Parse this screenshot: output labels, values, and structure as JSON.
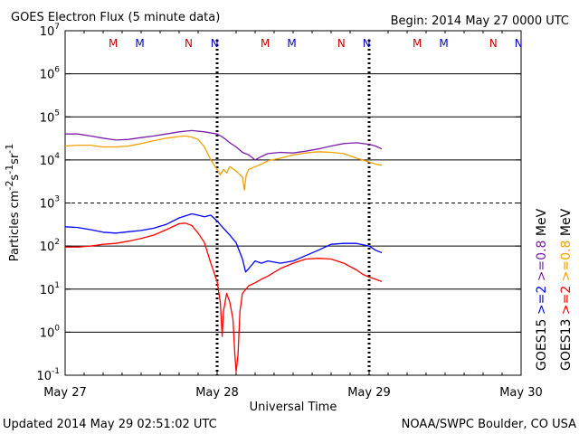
{
  "chart_data": {
    "type": "line",
    "title": "GOES Electron Flux (5 minute data)",
    "begin_label": "Begin: 2014 May 27 0000 UTC",
    "xlabel": "Universal Time",
    "ylabel_parts": [
      "Particles cm",
      "-2",
      "s",
      "-1",
      "sr",
      "-1"
    ],
    "y_scale": "log",
    "ylim": [
      0.1,
      10000000
    ],
    "y_ticks": [
      {
        "exp": "-1",
        "value": 0.1
      },
      {
        "exp": "0",
        "value": 1
      },
      {
        "exp": "1",
        "value": 10
      },
      {
        "exp": "2",
        "value": 100
      },
      {
        "exp": "3",
        "value": 1000
      },
      {
        "exp": "4",
        "value": 10000
      },
      {
        "exp": "5",
        "value": 100000
      },
      {
        "exp": "6",
        "value": 1000000
      },
      {
        "exp": "7",
        "value": 10000000
      }
    ],
    "xlim_hours": [
      0,
      72
    ],
    "x_ticks": [
      {
        "label": "May 27",
        "hour": 0
      },
      {
        "label": "May 28",
        "hour": 24
      },
      {
        "label": "May 29",
        "hour": 48
      },
      {
        "label": "May 30",
        "hour": 72
      }
    ],
    "threshold_dashed": 1000,
    "day_markers_hours": [
      24,
      48
    ],
    "markers": [
      {
        "label": "M",
        "hour": 7.6,
        "series": "GOES13"
      },
      {
        "label": "M",
        "hour": 11.8,
        "series": "GOES15"
      },
      {
        "label": "N",
        "hour": 19.5,
        "series": "GOES13"
      },
      {
        "label": "N",
        "hour": 23.6,
        "series": "GOES15"
      },
      {
        "label": "M",
        "hour": 31.6,
        "series": "GOES13"
      },
      {
        "label": "M",
        "hour": 35.8,
        "series": "GOES15"
      },
      {
        "label": "N",
        "hour": 43.6,
        "series": "GOES13"
      },
      {
        "label": "N",
        "hour": 47.6,
        "series": "GOES15"
      },
      {
        "label": "M",
        "hour": 55.6,
        "series": "GOES13"
      },
      {
        "label": "M",
        "hour": 59.8,
        "series": "GOES15"
      },
      {
        "label": "N",
        "hour": 67.6,
        "series": "GOES13"
      },
      {
        "label": "N",
        "hour": 71.6,
        "series": "GOES15"
      }
    ],
    "series": [
      {
        "name": "GOES15 >=0.8 MeV",
        "color": "#7a1fa8",
        "points": [
          [
            0,
            40000
          ],
          [
            2,
            40000
          ],
          [
            4,
            36000
          ],
          [
            6,
            32000
          ],
          [
            8,
            29000
          ],
          [
            10,
            30000
          ],
          [
            12,
            33000
          ],
          [
            14,
            36000
          ],
          [
            16,
            40000
          ],
          [
            18,
            45000
          ],
          [
            20,
            48000
          ],
          [
            22,
            45000
          ],
          [
            24,
            40000
          ],
          [
            25,
            33000
          ],
          [
            26,
            25000
          ],
          [
            27,
            20000
          ],
          [
            28,
            15000
          ],
          [
            29,
            13000
          ],
          [
            30,
            10000
          ],
          [
            31,
            12000
          ],
          [
            32,
            14000
          ],
          [
            34,
            15000
          ],
          [
            36,
            14500
          ],
          [
            38,
            16000
          ],
          [
            40,
            18000
          ],
          [
            42,
            21000
          ],
          [
            44,
            24000
          ],
          [
            46,
            25000
          ],
          [
            48,
            23000
          ],
          [
            49,
            21000
          ],
          [
            50,
            18000
          ]
        ]
      },
      {
        "name": "GOES13 >=0.8 MeV",
        "color": "#f0a000",
        "points": [
          [
            0,
            21000
          ],
          [
            2,
            22000
          ],
          [
            4,
            22000
          ],
          [
            6,
            20000
          ],
          [
            8,
            20000
          ],
          [
            10,
            21000
          ],
          [
            12,
            24000
          ],
          [
            14,
            28000
          ],
          [
            16,
            32000
          ],
          [
            18,
            35000
          ],
          [
            19,
            36000
          ],
          [
            20,
            34000
          ],
          [
            21,
            30000
          ],
          [
            22,
            20000
          ],
          [
            23,
            10000
          ],
          [
            24,
            6000
          ],
          [
            24.5,
            4500
          ],
          [
            25,
            6000
          ],
          [
            25.5,
            5000
          ],
          [
            26,
            7000
          ],
          [
            27,
            5500
          ],
          [
            28,
            4000
          ],
          [
            28.3,
            2000
          ],
          [
            28.6,
            4500
          ],
          [
            29,
            6000
          ],
          [
            30,
            7000
          ],
          [
            31,
            8000
          ],
          [
            32,
            9500
          ],
          [
            34,
            11000
          ],
          [
            36,
            13000
          ],
          [
            38,
            14500
          ],
          [
            40,
            15500
          ],
          [
            42,
            15000
          ],
          [
            44,
            14000
          ],
          [
            46,
            11000
          ],
          [
            48,
            9000
          ],
          [
            49,
            8000
          ],
          [
            50,
            7500
          ]
        ]
      },
      {
        "name": "GOES15 >=2 MeV",
        "color": "#0000ff",
        "points": [
          [
            0,
            280
          ],
          [
            2,
            270
          ],
          [
            4,
            240
          ],
          [
            6,
            210
          ],
          [
            8,
            200
          ],
          [
            10,
            215
          ],
          [
            12,
            230
          ],
          [
            14,
            260
          ],
          [
            16,
            320
          ],
          [
            18,
            450
          ],
          [
            20,
            560
          ],
          [
            21,
            520
          ],
          [
            22,
            480
          ],
          [
            23,
            520
          ],
          [
            24,
            380
          ],
          [
            25,
            260
          ],
          [
            26,
            180
          ],
          [
            27,
            120
          ],
          [
            28,
            50
          ],
          [
            28.5,
            25
          ],
          [
            29,
            30
          ],
          [
            30,
            45
          ],
          [
            31,
            40
          ],
          [
            32,
            45
          ],
          [
            34,
            40
          ],
          [
            36,
            45
          ],
          [
            38,
            60
          ],
          [
            40,
            80
          ],
          [
            42,
            110
          ],
          [
            44,
            115
          ],
          [
            46,
            115
          ],
          [
            48,
            100
          ],
          [
            49,
            80
          ],
          [
            50,
            70
          ]
        ]
      },
      {
        "name": "GOES13 >=2 MeV",
        "color": "#ff0000",
        "points": [
          [
            0,
            95
          ],
          [
            2,
            95
          ],
          [
            4,
            100
          ],
          [
            6,
            110
          ],
          [
            8,
            115
          ],
          [
            10,
            130
          ],
          [
            12,
            150
          ],
          [
            14,
            180
          ],
          [
            16,
            240
          ],
          [
            18,
            330
          ],
          [
            19,
            340
          ],
          [
            20,
            300
          ],
          [
            21,
            200
          ],
          [
            22,
            120
          ],
          [
            23,
            40
          ],
          [
            24,
            15
          ],
          [
            24.5,
            5
          ],
          [
            24.8,
            0.8
          ],
          [
            25,
            3
          ],
          [
            25.5,
            8
          ],
          [
            26,
            5
          ],
          [
            26.5,
            2
          ],
          [
            26.8,
            0.3
          ],
          [
            27,
            0.12
          ],
          [
            27.3,
            0.3
          ],
          [
            27.6,
            3
          ],
          [
            28,
            8
          ],
          [
            29,
            12
          ],
          [
            30,
            14
          ],
          [
            31,
            17
          ],
          [
            32,
            20
          ],
          [
            34,
            30
          ],
          [
            36,
            40
          ],
          [
            38,
            50
          ],
          [
            40,
            52
          ],
          [
            42,
            50
          ],
          [
            44,
            40
          ],
          [
            46,
            28
          ],
          [
            47,
            22
          ],
          [
            48,
            19
          ],
          [
            49,
            17
          ],
          [
            50,
            15
          ]
        ]
      }
    ],
    "legend": [
      {
        "text": "GOES15",
        "color": "#000000"
      },
      {
        "text": ">=2",
        "color": "#0000ff"
      },
      {
        "text": ">=0.8",
        "color": "#7a1fa8"
      },
      {
        "text": "MeV",
        "color": "#000000"
      },
      {
        "text": "GOES13",
        "color": "#000000"
      },
      {
        "text": ">=2",
        "color": "#ff0000"
      },
      {
        "text": ">=0.8",
        "color": "#f0a000"
      },
      {
        "text": "MeV",
        "color": "#000000"
      }
    ],
    "marker_colors": {
      "GOES13": "#cc0000",
      "GOES15": "#0000cc"
    }
  },
  "footer": {
    "updated": "Updated 2014 May 29 02:51:02 UTC",
    "credit": "NOAA/SWPC Boulder, CO USA"
  }
}
